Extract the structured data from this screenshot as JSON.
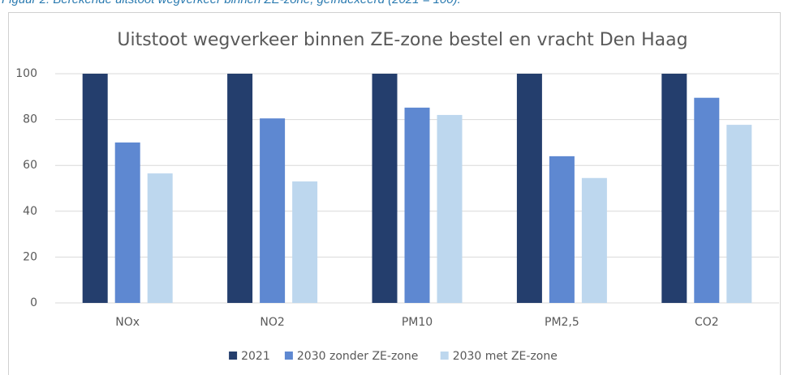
{
  "caption": "Figuur 2: Berekende uitstoot wegverkeer binnen ZE-zone, geïndexeerd (2021 = 100).",
  "chart_data": {
    "type": "bar",
    "title": "Uitstoot wegverkeer binnen ZE-zone bestel en vracht Den Haag",
    "categories": [
      "NOx",
      "NO2",
      "PM10",
      "PM2,5",
      "CO2"
    ],
    "series": [
      {
        "name": "2021",
        "color": "#243e6d",
        "values": [
          100,
          100,
          100,
          100,
          100
        ]
      },
      {
        "name": "2030 zonder ZE-zone",
        "color": "#5e88d1",
        "values": [
          70,
          80.5,
          85.2,
          64,
          89.5
        ]
      },
      {
        "name": "2030 met ZE-zone",
        "color": "#bdd7ee",
        "values": [
          56.5,
          53,
          82,
          54.5,
          77.7
        ]
      }
    ],
    "ylim": [
      0,
      100
    ],
    "yticks": [
      0,
      20,
      40,
      60,
      80,
      100
    ],
    "grid": true,
    "legend": "bottom"
  }
}
